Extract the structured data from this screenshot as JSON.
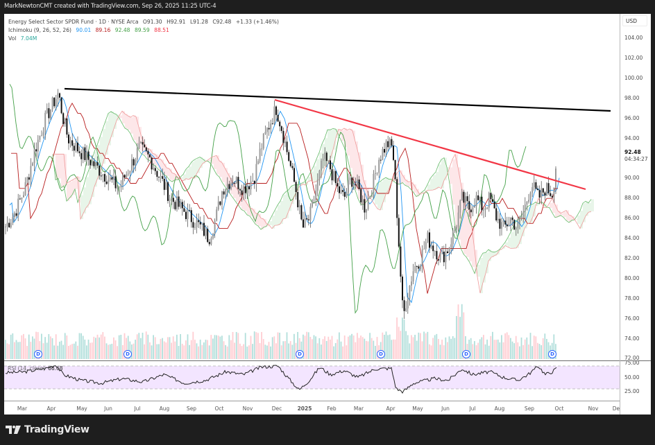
{
  "header": {
    "credit": "MarkNewtonCMT created with TradingView.com, Sep 26, 2025 11:25 UTC-4"
  },
  "legend": {
    "symbol_line": {
      "name": "Energy Select Sector SPDR Fund · 1D · NYSE Arca",
      "open": "O91.30",
      "high": "H92.91",
      "low": "L91.28",
      "close": "C92.48",
      "change": "+1.33 (+1.46%)"
    },
    "ichimoku": {
      "label": "Ichimoku (9, 26, 52, 26)",
      "conversion": "90.01",
      "base": "89.16",
      "lagging": "92.48",
      "lead_a": "89.59",
      "lead_b": "88.51",
      "colors": {
        "conversion": "#2196f3",
        "base": "#b71c1c",
        "lagging": "#43a047",
        "lead_a": "#43a047",
        "lead_b": "#f23645"
      }
    },
    "volume": {
      "label": "Vol",
      "value": "7.04M",
      "color": "#26a69a"
    }
  },
  "price_axis": {
    "currency": "USD",
    "ticks": [
      "104.00",
      "102.00",
      "100.00",
      "98.00",
      "96.00",
      "94.00",
      "92.00",
      "90.00",
      "88.00",
      "86.00",
      "84.00",
      "82.00",
      "80.00",
      "78.00",
      "76.00",
      "74.00",
      "72.00"
    ],
    "last_price": "92.48",
    "countdown": "04:34:27"
  },
  "rsi": {
    "label": "RSI (14, close)",
    "value": "66.68",
    "axis_ticks": [
      "75.00",
      "50.00",
      "25.00"
    ],
    "band_color": "#f3e5ff"
  },
  "time_axis": {
    "labels": [
      "Mar",
      "Apr",
      "May",
      "Jun",
      "Jul",
      "Aug",
      "Sep",
      "Oct",
      "Nov",
      "Dec",
      "2025",
      "Feb",
      "Mar",
      "Apr",
      "May",
      "Jun",
      "Jul",
      "Aug",
      "Sep",
      "Oct",
      "Nov",
      "Dec"
    ]
  },
  "dividend_marker": {
    "label": "D"
  },
  "footer": {
    "brand": "TradingView"
  },
  "colors": {
    "trendline_black": "#000000",
    "trendline_red": "#f23645",
    "volume_up": "#b2dfdb",
    "volume_down": "#ffcdd2",
    "candle": "#1a1a1a"
  },
  "chart_data": {
    "type": "line",
    "title": "Energy Select Sector SPDR Fund · 1D · NYSE Arca",
    "xlabel": "",
    "ylabel": "USD",
    "ylim": [
      72,
      105
    ],
    "grid": false,
    "x": [
      "Mar 2024",
      "Apr 2024",
      "May 2024",
      "Jun 2024",
      "Jul 2024",
      "Aug 2024",
      "Sep 2024",
      "Oct 2024",
      "Nov 2024",
      "Dec 2024",
      "Jan 2025",
      "Feb 2025",
      "Mar 2025",
      "Apr 2025",
      "May 2025",
      "Jun 2025",
      "Jul 2025",
      "Aug 2025",
      "Sep 2025",
      "Sep 26 2025"
    ],
    "series": [
      {
        "name": "Close (approx.)",
        "values": [
          85,
          97,
          92,
          88,
          92,
          86,
          84,
          89,
          96,
          88,
          93,
          89,
          94,
          78,
          82,
          88,
          88,
          86,
          90,
          92.48
        ]
      },
      {
        "name": "RSI (14, close) approx.",
        "values": [
          60,
          72,
          45,
          40,
          50,
          42,
          38,
          55,
          68,
          30,
          62,
          48,
          62,
          25,
          45,
          55,
          62,
          48,
          72,
          66.68
        ]
      }
    ],
    "annotations": [
      {
        "type": "trendline",
        "color": "black",
        "from": [
          "Apr 2024",
          99.0
        ],
        "to": [
          "Nov 2025",
          96.6
        ]
      },
      {
        "type": "trendline",
        "color": "red",
        "from": [
          "Nov 2024",
          97.8
        ],
        "to": [
          "Oct 2025",
          88.8
        ]
      }
    ],
    "ohlc_last": {
      "open": 91.3,
      "high": 92.91,
      "low": 91.28,
      "close": 92.48,
      "change": 1.33,
      "change_pct": 1.46
    },
    "ichimoku_last": {
      "conversion": 90.01,
      "base": 89.16,
      "lagging": 92.48,
      "lead_a": 89.59,
      "lead_b": 88.51
    },
    "volume_last": "7.04M",
    "rsi_levels": [
      70,
      30
    ],
    "rsi_axis": [
      25,
      50,
      75
    ]
  }
}
